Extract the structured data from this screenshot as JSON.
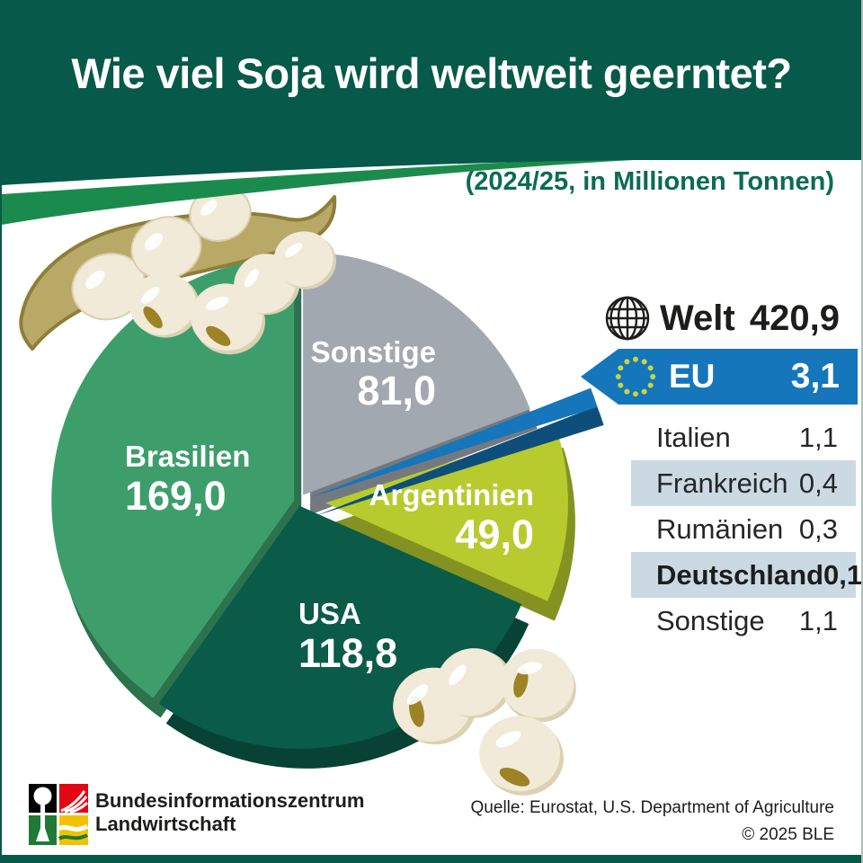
{
  "header": {
    "title": "Wie viel Soja wird weltweit geerntet?",
    "subtitle": "(2024/25, in Millionen Tonnen)"
  },
  "world_total": {
    "icon": "globe-icon",
    "label": "Welt",
    "value": "420,9"
  },
  "eu_banner": {
    "icon": "eu-stars-icon",
    "label": "EU",
    "value": "3,1"
  },
  "chart_data": {
    "type": "pie",
    "title": "Wie viel Soja wird weltweit geerntet?",
    "subtitle": "(2024/25, in Millionen Tonnen)",
    "season": "2024/25",
    "unit": "Millionen Tonnen",
    "total_label": "Welt",
    "total": 420.9,
    "start_angle_deg": 0,
    "direction": "clockwise",
    "slices": [
      {
        "label": "Sonstige",
        "value": 81.0,
        "display": "81,0",
        "color": "#a1a8b0"
      },
      {
        "label": "EU",
        "value": 3.1,
        "display": "3,1",
        "color": "#1576bb"
      },
      {
        "label": "Argentinien",
        "value": 49.0,
        "display": "49,0",
        "color": "#b7cb2e"
      },
      {
        "label": "USA",
        "value": 118.8,
        "display": "118,8",
        "color": "#0b5b49"
      },
      {
        "label": "Brasilien",
        "value": 169.0,
        "display": "169,0",
        "color": "#3d9e6b"
      }
    ],
    "eu_breakdown": [
      {
        "label": "Italien",
        "value": "1,1",
        "striped": false,
        "bold": false
      },
      {
        "label": "Frankreich",
        "value": "0,4",
        "striped": true,
        "bold": false
      },
      {
        "label": "Rumänien",
        "value": "0,3",
        "striped": false,
        "bold": false
      },
      {
        "label": "Deutschland",
        "value": "0,1",
        "striped": true,
        "bold": true
      },
      {
        "label": "Sonstige",
        "value": "1,1",
        "striped": false,
        "bold": false
      }
    ]
  },
  "footer": {
    "org_line1": "Bundesinformationszentrum",
    "org_line2": "Landwirtschaft",
    "source": "Quelle: Eurostat, U.S. Department of Agriculture",
    "copyright": "© 2025 BLE"
  },
  "colors": {
    "header_green": "#07594a",
    "swoosh_green": "#1b8b4d",
    "subtitle_green": "#0c6b54",
    "eu_blue": "#1576bb",
    "table_stripe": "#cbd9e3",
    "text_dark": "#1d1d1b",
    "bean_cream": "#f1ead8",
    "pod_tan": "#b9a967"
  },
  "icons": [
    "globe-icon",
    "eu-stars-icon",
    "soybean-pod-illustration",
    "soybean-icon",
    "bzl-logo"
  ]
}
